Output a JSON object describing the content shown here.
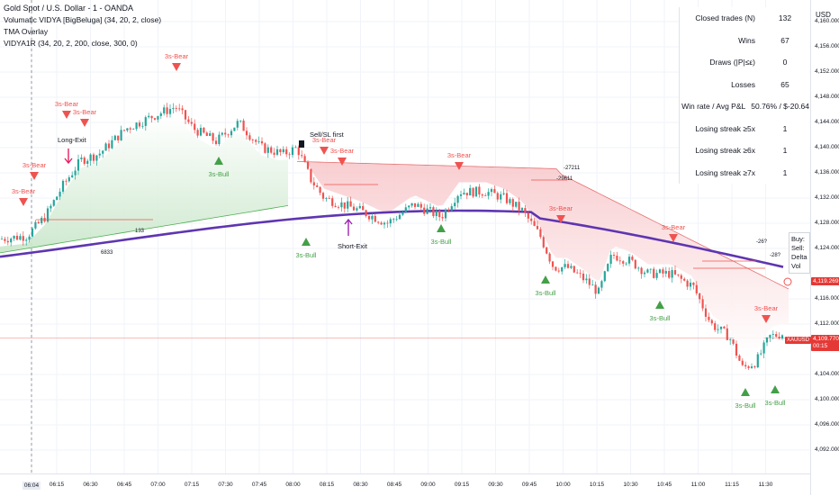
{
  "legend": {
    "title": "Gold Spot / U.S. Dollar - 1 - OANDA",
    "lines": [
      "Volumatic VIDYA [BigBeluga] (34, 20, 2, close)",
      "TMA Overlay",
      "VIDYA1R (34, 20, 2, 200, close, 300, 0)"
    ]
  },
  "stats": [
    {
      "label": "Closed trades (N)",
      "value": "132"
    },
    {
      "label": "Wins",
      "value": "67"
    },
    {
      "label": "Draws (|P|≤ε)",
      "value": "0"
    },
    {
      "label": "Losses",
      "value": "65"
    },
    {
      "label": "Win rate / Avg P&L",
      "value": "50.76% / $-20.64"
    },
    {
      "label": "Losing streak ≥5x",
      "value": "1"
    },
    {
      "label": "Losing streak ≥6x",
      "value": "1"
    },
    {
      "label": "Losing streak ≥7x",
      "value": "1"
    }
  ],
  "price_axis": {
    "currency": "USD",
    "ticks": [
      "4,160.000",
      "4,156.000",
      "4,152.000",
      "4,148.000",
      "4,144.000",
      "4,140.000",
      "4,136.000",
      "4,132.000",
      "4,128.000",
      "4,124.000",
      "4,116.000",
      "4,112.000",
      "4,104.000",
      "4,100.000",
      "4,096.000",
      "4,092.000"
    ],
    "tag_upper": {
      "value": "4,119.269",
      "color": "#e53935"
    },
    "tag_symbol": {
      "text": "XAUUSD",
      "color": "#e53935"
    },
    "tag_price": {
      "value": "4,109.770",
      "sub": "00:15",
      "color": "#e53935"
    }
  },
  "time_axis": {
    "ticks": [
      "06:04",
      "06:15",
      "06:30",
      "06:45",
      "07:00",
      "07:15",
      "07:30",
      "07:45",
      "08:00",
      "08:15",
      "08:30",
      "08:45",
      "09:00",
      "09:15",
      "09:30",
      "09:45",
      "10:00",
      "10:15",
      "10:30",
      "10:45",
      "11:00",
      "11:15",
      "11:30"
    ]
  },
  "signals": {
    "bear_label": "3s-Bear",
    "bull_label": "3s-Bull",
    "long_exit": "Long-Exit",
    "short_exit": "Short-Exit",
    "sell_first": "Sell/SL first"
  },
  "side_box": {
    "lines": [
      "Buy:",
      "Sell:",
      "Delta Vol"
    ]
  },
  "misc_numbers": [
    "6833",
    "133",
    "-27211",
    "-29611",
    "-26?",
    "-28?"
  ],
  "chart_data": {
    "type": "candlestick",
    "symbol": "XAUUSD",
    "colors": {
      "up": "#26a69a",
      "down": "#ef5350",
      "vidya": "#5e35b1",
      "bull_band": "#4caf50",
      "bear_band": "#e57373"
    },
    "close_price": 4109.77,
    "ylim": [
      4090,
      4162
    ]
  }
}
